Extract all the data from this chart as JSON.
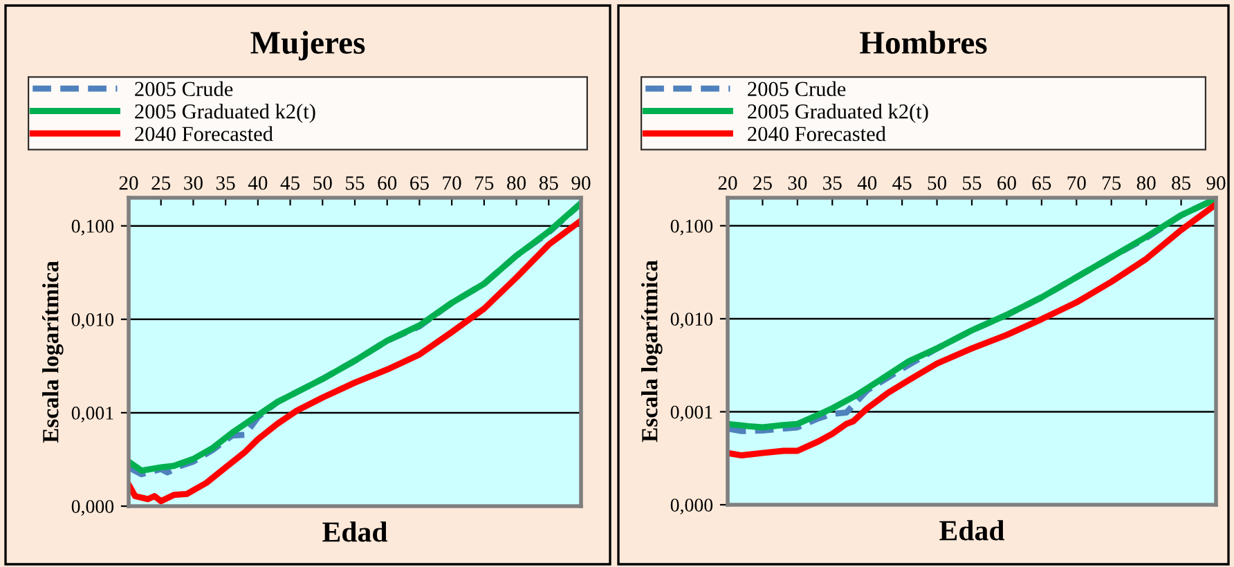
{
  "chart_data": [
    {
      "type": "line",
      "title": "Mujeres",
      "xlabel": "Edad",
      "ylabel": "Escala logarítmica",
      "log": "y",
      "grid": "y",
      "legend": "top",
      "xlim": [
        20,
        90
      ],
      "xticks": [
        20,
        25,
        30,
        35,
        40,
        45,
        50,
        55,
        60,
        65,
        70,
        75,
        80,
        85,
        90
      ],
      "ylim": [
        0.0001,
        0.2
      ],
      "yticks": [
        {
          "value": 0.0001,
          "label": "0,000"
        },
        {
          "value": 0.001,
          "label": "0,001"
        },
        {
          "value": 0.01,
          "label": "0,010"
        },
        {
          "value": 0.1,
          "label": "0,100"
        }
      ],
      "series": [
        {
          "name": "2005 Crude",
          "color": "#4f81bd",
          "line_style": "dashed",
          "x": [
            20,
            22,
            25,
            26,
            28,
            30,
            33,
            36,
            38,
            40,
            43,
            47,
            50,
            55,
            60,
            65,
            70,
            75,
            80,
            85,
            90
          ],
          "values": [
            0.00026,
            0.00022,
            0.00025,
            0.00023,
            0.00027,
            0.0003,
            0.0004,
            0.00057,
            0.00058,
            0.0009,
            0.0013,
            0.0018,
            0.0023,
            0.0036,
            0.0059,
            0.0084,
            0.015,
            0.024,
            0.048,
            0.085,
            0.175
          ]
        },
        {
          "name": "2005 Graduated k2(t)",
          "color": "#00b050",
          "line_style": "solid",
          "x": [
            20,
            22,
            25,
            27,
            30,
            33,
            36,
            40,
            43,
            47,
            50,
            55,
            60,
            65,
            70,
            75,
            80,
            85,
            90
          ],
          "values": [
            0.0003,
            0.00024,
            0.00026,
            0.00027,
            0.00032,
            0.00042,
            0.00061,
            0.00094,
            0.0013,
            0.0018,
            0.0023,
            0.0036,
            0.0059,
            0.0086,
            0.015,
            0.024,
            0.048,
            0.087,
            0.175
          ]
        },
        {
          "name": "2040 Forecasted",
          "color": "#ff0000",
          "line_style": "solid",
          "x": [
            20,
            21,
            23,
            24,
            25,
            27,
            29,
            32,
            35,
            38,
            40,
            43,
            46,
            50,
            55,
            60,
            65,
            70,
            75,
            80,
            85,
            90
          ],
          "values": [
            0.00017,
            0.000128,
            0.000119,
            0.000128,
            0.000113,
            0.000132,
            0.000135,
            0.000177,
            0.00026,
            0.00038,
            0.00052,
            0.00076,
            0.00105,
            0.00145,
            0.0021,
            0.0029,
            0.0042,
            0.0073,
            0.013,
            0.028,
            0.063,
            0.114
          ]
        }
      ]
    },
    {
      "type": "line",
      "title": "Hombres",
      "xlabel": "Edad",
      "ylabel": "Escala logarítmica",
      "log": "y",
      "grid": "y",
      "legend": "top",
      "xlim": [
        20,
        90
      ],
      "xticks": [
        20,
        25,
        30,
        35,
        40,
        45,
        50,
        55,
        60,
        65,
        70,
        75,
        80,
        85,
        90
      ],
      "ylim": [
        0.0001,
        0.2
      ],
      "yticks": [
        {
          "value": 0.0001,
          "label": "0,000"
        },
        {
          "value": 0.001,
          "label": "0,001"
        },
        {
          "value": 0.01,
          "label": "0,010"
        },
        {
          "value": 0.1,
          "label": "0,100"
        }
      ],
      "series": [
        {
          "name": "2005 Crude",
          "color": "#4f81bd",
          "line_style": "dashed",
          "x": [
            20,
            22,
            25,
            30,
            33,
            35,
            37,
            40,
            45,
            50,
            55,
            60,
            65,
            70,
            75,
            80,
            85,
            90
          ],
          "values": [
            0.00066,
            0.00062,
            0.00063,
            0.00068,
            0.00085,
            0.00095,
            0.00098,
            0.0017,
            0.0029,
            0.0048,
            0.0075,
            0.011,
            0.017,
            0.028,
            0.046,
            0.074,
            0.13,
            0.195
          ]
        },
        {
          "name": "2005 Graduated k2(t)",
          "color": "#00b050",
          "line_style": "solid",
          "x": [
            20,
            23,
            25,
            28,
            30,
            33,
            35,
            38,
            40,
            43,
            46,
            50,
            55,
            60,
            65,
            70,
            75,
            80,
            85,
            90
          ],
          "values": [
            0.00074,
            0.0007,
            0.00068,
            0.00072,
            0.00074,
            0.00093,
            0.00109,
            0.00144,
            0.00179,
            0.0025,
            0.0035,
            0.0048,
            0.0075,
            0.011,
            0.017,
            0.028,
            0.046,
            0.076,
            0.13,
            0.195
          ]
        },
        {
          "name": "2040 Forecasted",
          "color": "#ff0000",
          "line_style": "solid",
          "x": [
            20,
            22,
            25,
            28,
            30,
            33,
            35,
            37,
            38,
            40,
            43,
            46,
            50,
            55,
            60,
            65,
            70,
            75,
            80,
            85,
            90
          ],
          "values": [
            0.00036,
            0.00034,
            0.00036,
            0.00038,
            0.00038,
            0.00048,
            0.00058,
            0.00074,
            0.00079,
            0.00109,
            0.0016,
            0.0022,
            0.0033,
            0.0048,
            0.0067,
            0.0099,
            0.015,
            0.025,
            0.044,
            0.09,
            0.17
          ]
        }
      ]
    }
  ]
}
